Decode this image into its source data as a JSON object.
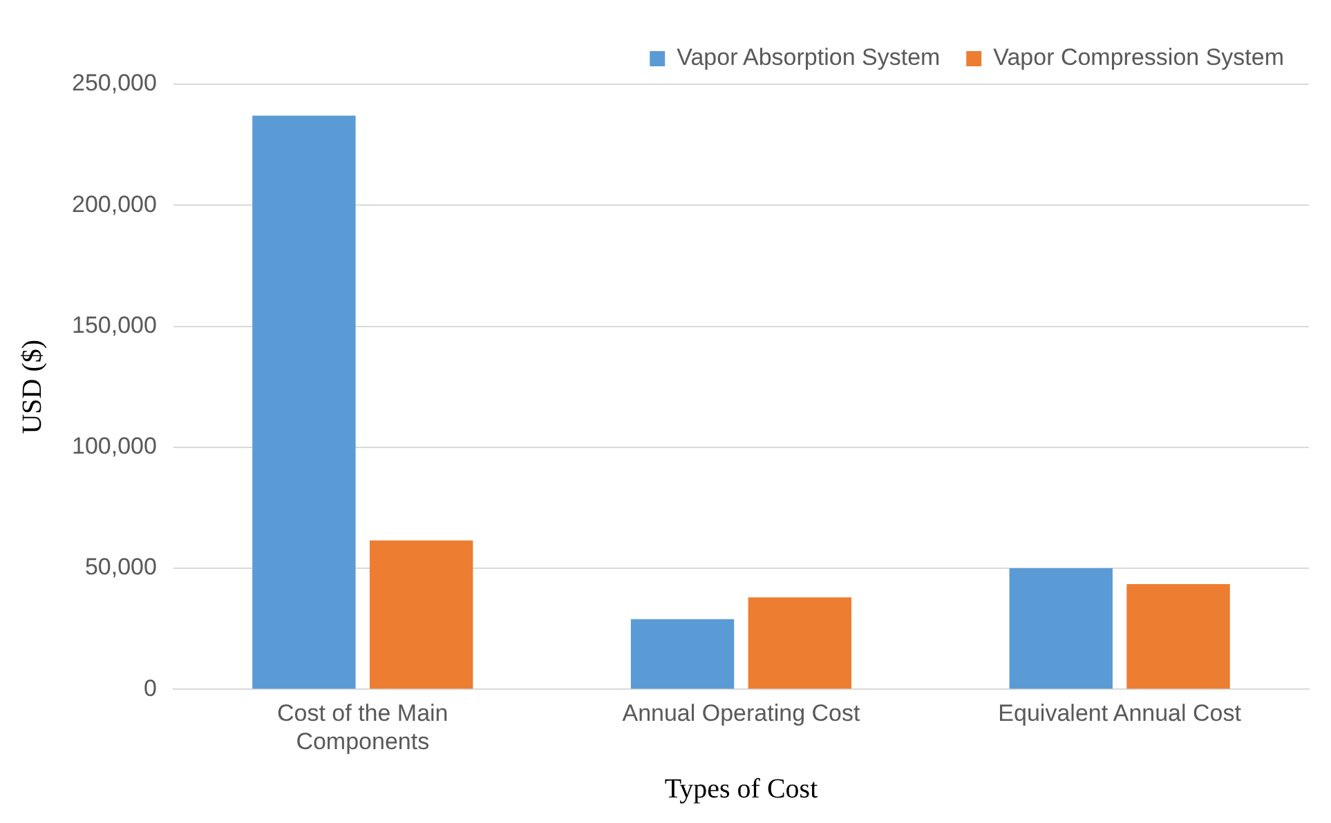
{
  "chart_data": {
    "type": "bar",
    "xlabel": "Types of Cost",
    "ylabel": "USD ($)",
    "categories": [
      "Cost of the Main Components",
      "Annual Operating Cost",
      "Equivalent Annual Cost"
    ],
    "series": [
      {
        "name": "Vapor Absorption System",
        "color": "#5b9bd5",
        "values": [
          237000,
          29000,
          50000
        ]
      },
      {
        "name": "Vapor Compression System",
        "color": "#ed7d31",
        "values": [
          61500,
          38000,
          43500
        ]
      }
    ],
    "ylim": [
      0,
      250000
    ],
    "yticks": [
      0,
      {
        "value": 50000,
        "label": "50,000"
      },
      {
        "value": 100000,
        "label": "100,000"
      },
      {
        "value": 150000,
        "label": "150,000"
      },
      {
        "value": 200000,
        "label": "200,000"
      },
      {
        "value": 250000,
        "label": "250,000"
      }
    ],
    "grid": "y",
    "legend": "top right"
  }
}
